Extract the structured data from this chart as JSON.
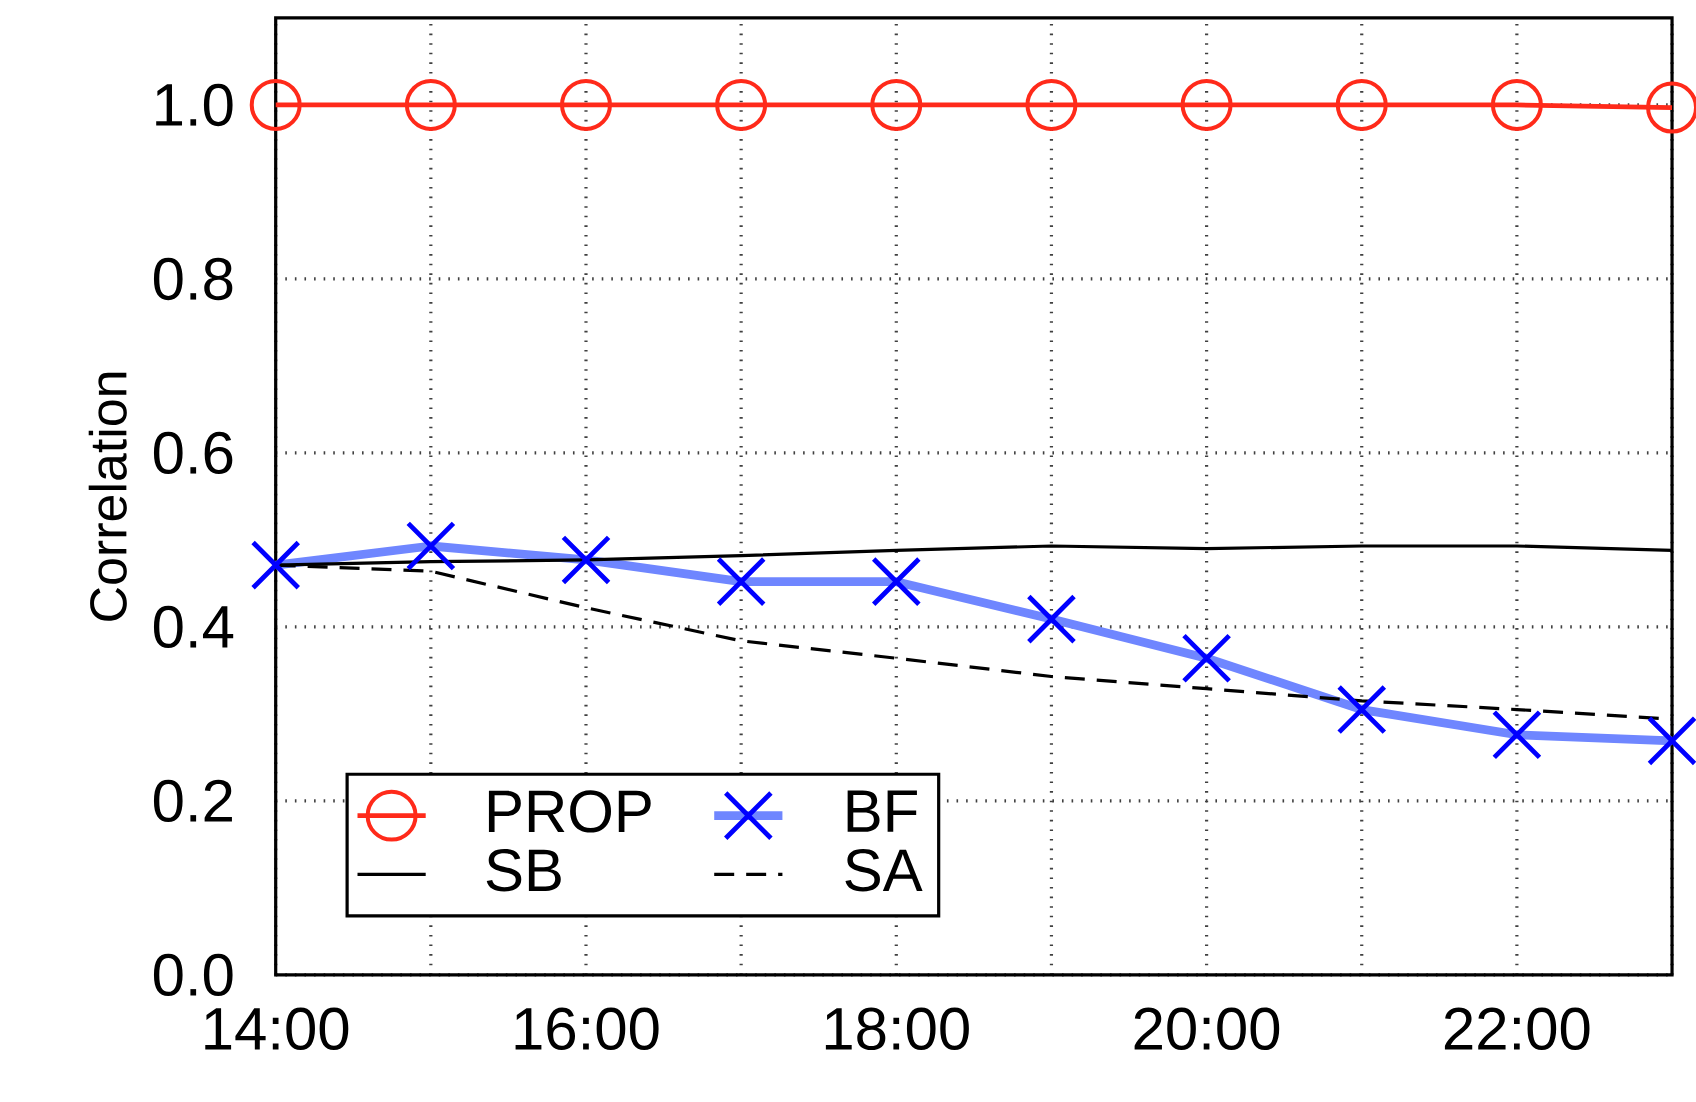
{
  "chart_data": {
    "type": "line",
    "ylabel": "Correlation",
    "x": [
      14,
      15,
      16,
      17,
      18,
      19,
      20,
      21,
      22,
      23
    ],
    "series": [
      {
        "name": "PROP",
        "color": "#ff2a1a",
        "marker": "circle",
        "line_style": "solid",
        "values": [
          1.0,
          1.0,
          1.0,
          1.0,
          1.0,
          1.0,
          1.0,
          1.0,
          1.0,
          0.997
        ]
      },
      {
        "name": "BF",
        "color": "#6f86ff",
        "marker": "cross",
        "line_style": "solid",
        "values": [
          0.471,
          0.493,
          0.477,
          0.452,
          0.452,
          0.409,
          0.364,
          0.305,
          0.276,
          0.269
        ]
      },
      {
        "name": "SB",
        "color": "#000000",
        "marker": "none",
        "line_style": "solid",
        "values": [
          0.471,
          0.475,
          0.477,
          0.482,
          0.488,
          0.493,
          0.49,
          0.493,
          0.493,
          0.488
        ]
      },
      {
        "name": "SA",
        "color": "#000000",
        "marker": "none",
        "line_style": "dashed",
        "values": [
          0.471,
          0.464,
          0.422,
          0.384,
          0.364,
          0.343,
          0.329,
          0.315,
          0.305,
          0.294
        ]
      }
    ],
    "xlim": [
      14,
      23
    ],
    "xticks": [
      {
        "value": 14,
        "label": "14:00"
      },
      {
        "value": 15,
        "label": null
      },
      {
        "value": 16,
        "label": "16:00"
      },
      {
        "value": 17,
        "label": null
      },
      {
        "value": 18,
        "label": "18:00"
      },
      {
        "value": 19,
        "label": null
      },
      {
        "value": 20,
        "label": "20:00"
      },
      {
        "value": 21,
        "label": null
      },
      {
        "value": 22,
        "label": "22:00"
      },
      {
        "value": 23,
        "label": null
      }
    ],
    "ylim": [
      0,
      1.1
    ],
    "yticks": [
      {
        "value": 0,
        "label": "0.0"
      },
      {
        "value": 0.2,
        "label": "0.2"
      },
      {
        "value": 0.4,
        "label": "0.4"
      },
      {
        "value": 0.6,
        "label": "0.6"
      },
      {
        "value": 0.8,
        "label": "0.8"
      },
      {
        "value": 1.0,
        "label": "1.0"
      }
    ],
    "grid": true,
    "legend": "bottom left"
  }
}
